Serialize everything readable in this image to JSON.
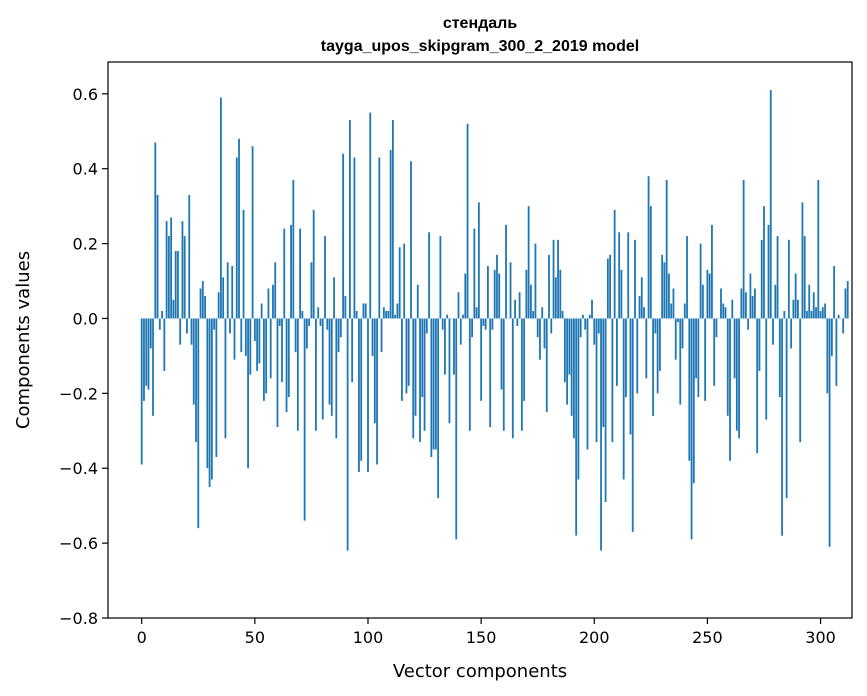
{
  "chart_data": {
    "type": "bar",
    "title_line1": "стендаль",
    "title_line2": "tayga_upos_skipgram_300_2_2019 model",
    "xlabel": "Vector components",
    "ylabel": "Components values",
    "xlim": [
      -14.9,
      313.9
    ],
    "ylim": [
      -0.8,
      0.685
    ],
    "xticks": [
      0,
      50,
      100,
      150,
      200,
      250,
      300
    ],
    "xtick_labels": [
      "0",
      "50",
      "100",
      "150",
      "200",
      "250",
      "300"
    ],
    "yticks": [
      -0.8,
      -0.6,
      -0.4,
      -0.2,
      0.0,
      0.2,
      0.4,
      0.6
    ],
    "ytick_labels": [
      "−0.8",
      "−0.6",
      "−0.4",
      "−0.2",
      "0.0",
      "0.2",
      "0.4",
      "0.6"
    ],
    "bar_color": "#1f77b4",
    "values": [
      -0.39,
      -0.22,
      -0.18,
      -0.19,
      -0.08,
      -0.26,
      0.47,
      0.33,
      -0.03,
      0.02,
      -0.14,
      0.26,
      0.22,
      0.27,
      0.05,
      0.18,
      0.18,
      -0.07,
      0.26,
      0.22,
      -0.04,
      0.33,
      -0.07,
      -0.23,
      -0.33,
      -0.56,
      0.08,
      0.1,
      0.06,
      -0.4,
      -0.45,
      -0.43,
      -0.03,
      -0.37,
      0.07,
      0.59,
      0.11,
      -0.32,
      0.15,
      -0.04,
      0.14,
      -0.11,
      0.43,
      0.48,
      -0.09,
      0.29,
      -0.1,
      -0.4,
      -0.15,
      0.46,
      -0.06,
      -0.14,
      -0.12,
      0.04,
      -0.22,
      -0.2,
      0.08,
      -0.16,
      0.09,
      0.15,
      -0.29,
      -0.02,
      -0.17,
      0.24,
      -0.25,
      -0.21,
      0.25,
      0.37,
      -0.09,
      -0.3,
      0.24,
      0.02,
      -0.54,
      -0.08,
      -0.02,
      0.15,
      0.29,
      -0.3,
      0.03,
      -0.02,
      -0.27,
      0.22,
      -0.03,
      -0.23,
      -0.26,
      0.11,
      -0.32,
      -0.09,
      -0.05,
      0.44,
      0.06,
      -0.62,
      0.53,
      -0.17,
      0.43,
      0.02,
      -0.41,
      -0.38,
      0.04,
      0.04,
      -0.41,
      0.55,
      -0.1,
      -0.28,
      -0.39,
      0.43,
      -0.09,
      0.03,
      0.02,
      0.02,
      0.45,
      0.53,
      0.01,
      0.04,
      0.19,
      -0.22,
      0.2,
      -0.2,
      -0.18,
      0.42,
      -0.32,
      -0.26,
      0.09,
      -0.33,
      -0.21,
      -0.3,
      -0.04,
      0.23,
      -0.37,
      -0.35,
      -0.35,
      -0.48,
      0.22,
      -0.03,
      -0.15,
      0.01,
      -0.28,
      0.0,
      -0.15,
      -0.59,
      0.07,
      -0.07,
      0.01,
      0.12,
      0.52,
      -0.3,
      -0.05,
      0.24,
      0.03,
      0.31,
      -0.22,
      -0.02,
      -0.03,
      0.14,
      -0.29,
      -0.03,
      0.13,
      0.17,
      0.12,
      -0.19,
      -0.3,
      0.25,
      0.0,
      0.15,
      -0.32,
      0.05,
      -0.02,
      0.07,
      -0.3,
      -0.22,
      0.13,
      0.3,
      0.09,
      0.02,
      0.2,
      -0.05,
      -0.11,
      0.03,
      -0.08,
      -0.25,
      0.17,
      -0.04,
      0.21,
      0.11,
      0.21,
      0.13,
      0.02,
      -0.17,
      -0.23,
      -0.15,
      -0.26,
      -0.32,
      -0.58,
      -0.43,
      -0.05,
      0.01,
      -0.03,
      -0.35,
      0.01,
      0.05,
      -0.07,
      -0.33,
      -0.04,
      -0.62,
      -0.29,
      -0.49,
      0.16,
      0.17,
      -0.33,
      0.29,
      -0.18,
      0.23,
      0.13,
      -0.43,
      -0.21,
      0.23,
      -0.31,
      -0.57,
      0.21,
      -0.2,
      0.06,
      0.11,
      0.03,
      -0.16,
      0.38,
      0.3,
      -0.26,
      -0.04,
      -0.2,
      -0.14,
      0.17,
      0.15,
      0.37,
      0.12,
      0.04,
      0.08,
      -0.11,
      -0.01,
      -0.23,
      -0.08,
      0.04,
      0.22,
      -0.38,
      -0.59,
      -0.44,
      -0.16,
      -0.21,
      0.2,
      0.09,
      -0.22,
      0.13,
      0.12,
      0.25,
      -0.18,
      -0.05,
      0.0,
      0.08,
      0.04,
      0.03,
      -0.26,
      -0.38,
      0.05,
      -0.16,
      -0.3,
      -0.32,
      0.08,
      0.37,
      0.07,
      -0.03,
      0.12,
      0.06,
      0.08,
      -0.36,
      -0.14,
      0.21,
      0.3,
      -0.27,
      0.25,
      0.61,
      -0.07,
      0.09,
      0.22,
      -0.21,
      -0.58,
      0.02,
      -0.48,
      0.21,
      -0.08,
      0.05,
      0.12,
      0.05,
      -0.33,
      0.31,
      0.22,
      0.02,
      0.09,
      0.02,
      0.07,
      0.03,
      0.37,
      0.02,
      0.03,
      0.04,
      -0.2,
      -0.61,
      -0.1,
      0.14,
      -0.18,
      0.01,
      0.0,
      -0.04,
      0.08,
      0.1
    ]
  }
}
